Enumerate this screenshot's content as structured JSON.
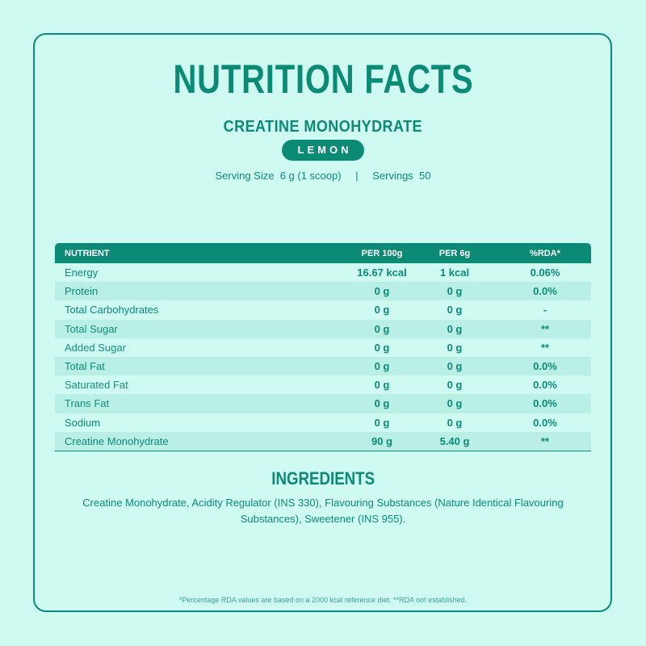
{
  "header": {
    "title": "NUTRITION FACTS",
    "product_name": "CREATINE MONOHYDRATE",
    "flavor": "LEMON"
  },
  "serving": {
    "size_label": "Serving Size",
    "size_value": "6 g (1 scoop)",
    "separator": "|",
    "servings_label": "Servings",
    "servings_value": "50"
  },
  "table": {
    "columns": [
      "NUTRIENT",
      "PER 100g",
      "PER 6g",
      "%RDA*"
    ],
    "rows": [
      {
        "nutrient": "Energy",
        "per100": "16.67 kcal",
        "per6": "1 kcal",
        "rda": "0.06%",
        "bold": true
      },
      {
        "nutrient": "Protein",
        "per100": "0 g",
        "per6": "0 g",
        "rda": "0.0%",
        "bold": true
      },
      {
        "nutrient": "Total Carbohydrates",
        "per100": "0 g",
        "per6": "0 g",
        "rda": "-",
        "bold": true
      },
      {
        "nutrient": "Total Sugar",
        "per100": "0 g",
        "per6": "0 g",
        "rda": "**",
        "bold": false
      },
      {
        "nutrient": "Added Sugar",
        "per100": "0 g",
        "per6": "0 g",
        "rda": "**",
        "bold": false
      },
      {
        "nutrient": "Total Fat",
        "per100": "0 g",
        "per6": "0 g",
        "rda": "0.0%",
        "bold": true
      },
      {
        "nutrient": "Saturated Fat",
        "per100": "0 g",
        "per6": "0 g",
        "rda": "0.0%",
        "bold": false
      },
      {
        "nutrient": "Trans Fat",
        "per100": "0 g",
        "per6": "0 g",
        "rda": "0.0%",
        "bold": false
      },
      {
        "nutrient": "Sodium",
        "per100": "0 g",
        "per6": "0 g",
        "rda": "0.0%",
        "bold": true
      },
      {
        "nutrient": "Creatine Monohydrate",
        "per100": "90 g",
        "per6": "5.40 g",
        "rda": "**",
        "bold": true
      }
    ]
  },
  "ingredients": {
    "title": "INGREDIENTS",
    "text": "Creatine Monohydrate, Acidity Regulator (INS 330), Flavouring Substances (Nature Identical Flavouring Substances), Sweetener (INS 955)."
  },
  "footnote": "*Percentage RDA values are based on a 2000 kcal reference diet.  **RDA not established.",
  "colors": {
    "background": "#cffaf1",
    "accent": "#0b8a76",
    "row_alt": "#b9efe4"
  }
}
